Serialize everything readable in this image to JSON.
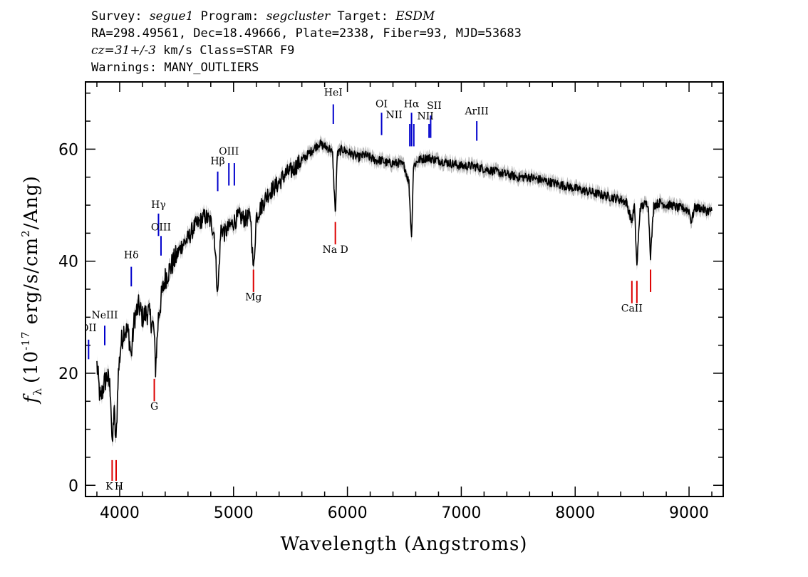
{
  "header": {
    "line1_a": "Survey: ",
    "line1_survey": "segue1",
    "line1_b": " Program: ",
    "line1_program": "segcluster",
    "line1_c": " Target: ",
    "line1_target": "ESDM",
    "line2": "RA=298.49561, Dec=18.49666, Plate=2338, Fiber=93, MJD=53683",
    "line3_cz": "cz=31+/-3",
    "line3_rest": " km/s Class=STAR F9",
    "line4": "Warnings: MANY_OUTLIERS"
  },
  "colors": {
    "spectrum": "#000000",
    "error_band": "#b0b0b0",
    "emission_marker": "#0000cc",
    "absorption_marker": "#dd0000",
    "axes": "#000000"
  },
  "chart_data": {
    "type": "line",
    "xlabel": "Wavelength (Angstroms)",
    "ylabel": "fλ (10⁻¹⁷ erg/s/cm²/Ang)",
    "ylabel_parts": {
      "f": "f",
      "lambda": "λ",
      "open": "(10",
      "exp": "-17",
      "mid": " erg/s/cm",
      "sq": "2",
      "close": "/Ang)"
    },
    "xlim": [
      3700,
      9300
    ],
    "ylim": [
      -2,
      72
    ],
    "x_ticks": [
      4000,
      5000,
      6000,
      7000,
      8000,
      9000
    ],
    "y_ticks": [
      0,
      20,
      40,
      60
    ],
    "x_tick_labels": [
      "4000",
      "5000",
      "6000",
      "7000",
      "8000",
      "9000"
    ],
    "y_tick_labels": [
      "0",
      "20",
      "40",
      "60"
    ],
    "series": [
      {
        "x": [
          3800,
          3830,
          3860,
          3890,
          3920,
          3935,
          3950,
          3968,
          3985,
          4010,
          4040,
          4080,
          4101,
          4130,
          4170,
          4200,
          4250,
          4300,
          4315,
          4340,
          4370,
          4400,
          4450,
          4500,
          4550,
          4600,
          4650,
          4700,
          4750,
          4800,
          4830,
          4861,
          4890,
          4920,
          4960,
          5000,
          5050,
          5100,
          5150,
          5175,
          5200,
          5250,
          5300,
          5350,
          5400,
          5450,
          5500,
          5550,
          5600,
          5650,
          5700,
          5750,
          5800,
          5850,
          5870,
          5890,
          5896,
          5910,
          5950,
          6000,
          6050,
          6100,
          6150,
          6200,
          6250,
          6300,
          6350,
          6400,
          6450,
          6500,
          6540,
          6563,
          6580,
          6620,
          6700,
          6800,
          6900,
          7000,
          7100,
          7200,
          7300,
          7400,
          7500,
          7600,
          7700,
          7800,
          7900,
          8000,
          8100,
          8200,
          8300,
          8400,
          8450,
          8498,
          8520,
          8542,
          8570,
          8600,
          8640,
          8662,
          8690,
          8750,
          8800,
          8850,
          8900,
          8950,
          9000,
          9020,
          9050,
          9100,
          9150,
          9200
        ],
        "y": [
          21.5,
          15,
          18,
          19.5,
          17,
          6,
          14,
          7,
          19,
          25,
          28,
          27,
          23,
          30,
          32,
          30,
          31,
          28,
          21,
          30,
          34,
          37,
          39,
          41,
          43,
          44,
          46,
          47,
          48,
          47,
          45,
          34,
          46,
          45,
          46,
          47,
          48,
          47.5,
          48,
          38,
          48,
          50,
          52,
          53,
          54,
          55.5,
          56,
          57,
          58,
          59,
          60,
          61,
          60.5,
          60,
          59,
          50,
          49,
          59,
          60,
          59.5,
          59,
          58.5,
          59,
          58.5,
          58,
          58,
          57.5,
          57.5,
          57.5,
          57,
          54,
          44,
          57,
          58,
          58.5,
          58,
          57.5,
          57,
          57,
          56.5,
          56,
          55.5,
          55,
          55,
          54.5,
          54,
          53.5,
          53,
          52.5,
          52,
          51.5,
          51,
          50.5,
          47,
          50,
          39,
          49.5,
          50,
          50.5,
          41,
          50,
          50.5,
          50,
          50,
          49.5,
          49.5,
          49,
          47,
          49.5,
          49.5,
          49,
          49
        ]
      }
    ],
    "line_markers": [
      {
        "label": "OII",
        "wave": 3727,
        "type": "emission",
        "y_top": 26,
        "y_bot": 22.5,
        "label_y": 27.5,
        "clipped": true
      },
      {
        "label": "NeIII",
        "wave": 3869,
        "type": "emission",
        "y_top": 28.5,
        "y_bot": 25,
        "label_y": 29.8
      },
      {
        "label": "Hδ",
        "wave": 4102,
        "type": "emission",
        "y_top": 39,
        "y_bot": 35.5,
        "label_y": 40.5
      },
      {
        "label": "Hγ",
        "wave": 4341,
        "type": "emission",
        "y_top": 48.5,
        "y_bot": 44.5,
        "label_y": 49.5
      },
      {
        "label": "OIII",
        "wave": 4363,
        "type": "emission",
        "y_top": 44.5,
        "y_bot": 41,
        "label_y": 45.5
      },
      {
        "label": "Hβ",
        "wave": 4861,
        "type": "emission",
        "y_top": 56,
        "y_bot": 52.5,
        "label_y": 57.3
      },
      {
        "label": "OIII",
        "wave": 4959,
        "type": "emission",
        "y_top": 57.5,
        "y_bot": 53.5,
        "label_y": 59
      },
      {
        "label": "",
        "wave": 5007,
        "type": "emission",
        "y_top": 57.5,
        "y_bot": 53.5
      },
      {
        "label": "HeI",
        "wave": 5876,
        "type": "emission",
        "y_top": 68,
        "y_bot": 64.5,
        "label_y": 69.5
      },
      {
        "label": "OI",
        "wave": 6300,
        "type": "emission",
        "y_top": 66.5,
        "y_bot": 62.5,
        "label_y": 67.5
      },
      {
        "label": "NII",
        "wave": 6548,
        "type": "emission",
        "y_top": 64.5,
        "y_bot": 60.5,
        "label_y": 65.5,
        "label_dx": -22
      },
      {
        "label": "Hα",
        "wave": 6563,
        "type": "emission",
        "y_top": 66.5,
        "y_bot": 60.5,
        "label_y": 67.5
      },
      {
        "label": "",
        "wave": 6583,
        "type": "emission",
        "y_top": 64.5,
        "y_bot": 60.5
      },
      {
        "label": "NII",
        "wave": 6717,
        "type": "emission",
        "y_top": 64.5,
        "y_bot": 62,
        "label_y": 65.3,
        "label_dx": -5
      },
      {
        "label": "SII",
        "wave": 6731,
        "type": "emission",
        "y_top": 66,
        "y_bot": 62,
        "label_y": 67.2,
        "label_dx": 5
      },
      {
        "label": "ArIII",
        "wave": 7136,
        "type": "emission",
        "y_top": 65,
        "y_bot": 61.5,
        "label_y": 66.2
      },
      {
        "label": "K",
        "wave": 3934,
        "type": "absorption",
        "y_top": 4.5,
        "y_bot": 0.8,
        "label_y": -0.8,
        "label_dx": -4
      },
      {
        "label": "H",
        "wave": 3969,
        "type": "absorption",
        "y_top": 4.5,
        "y_bot": 0.8,
        "label_y": -0.8,
        "label_dx": 4
      },
      {
        "label": "G",
        "wave": 4304,
        "type": "absorption",
        "y_top": 19,
        "y_bot": 15,
        "label_y": 13.5
      },
      {
        "label": "Mg",
        "wave": 5175,
        "type": "absorption",
        "y_top": 38.5,
        "y_bot": 34.5,
        "label_y": 33
      },
      {
        "label": "Na D",
        "wave": 5894,
        "type": "absorption",
        "y_top": 47,
        "y_bot": 43,
        "label_y": 41.5
      },
      {
        "label": "CaII",
        "wave": 8498,
        "type": "absorption",
        "y_top": 36.5,
        "y_bot": 32.5,
        "label_y": 31
      },
      {
        "label": "",
        "wave": 8542,
        "type": "absorption",
        "y_top": 36.5,
        "y_bot": 32.5
      },
      {
        "label": "",
        "wave": 8662,
        "type": "absorption",
        "y_top": 38.5,
        "y_bot": 34.5
      }
    ]
  }
}
